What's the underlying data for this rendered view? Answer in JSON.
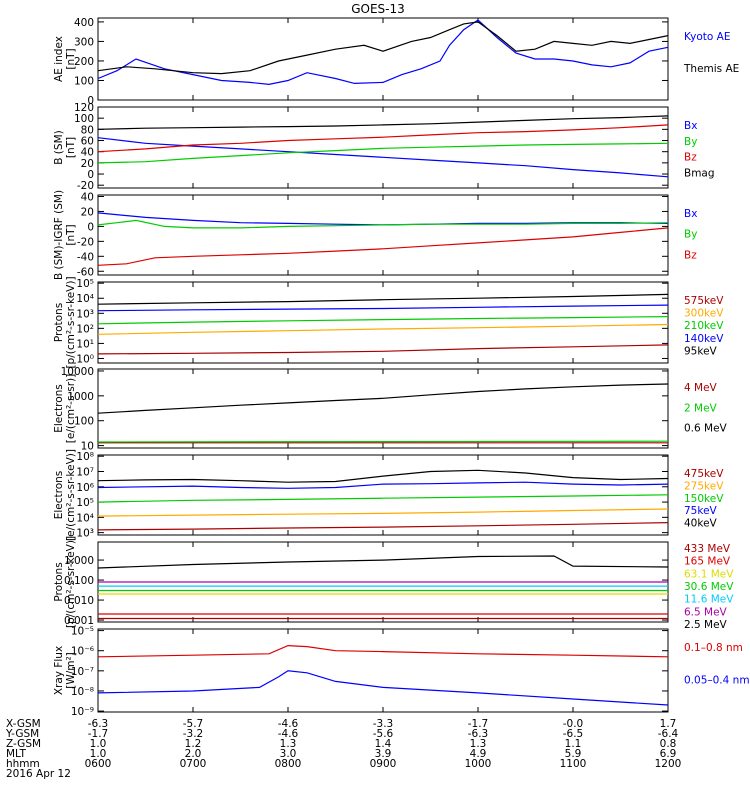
{
  "title": "GOES-13",
  "colors": {
    "black": "#000000",
    "blue": "#0000ff",
    "red": "#dd0000",
    "green": "#00cc00",
    "orange": "#ffaa00",
    "cyan": "#00ccff",
    "yellow": "#dddd00",
    "darkred": "#aa0000",
    "purple": "#aa00aa"
  },
  "chart_data": [
    {
      "type": "line",
      "ylabel": "AE index\n[nT]",
      "yscale": "linear",
      "ylim": [
        0,
        420
      ],
      "yticks": [
        "0",
        "100",
        "200",
        "300",
        "400"
      ],
      "series": [
        {
          "name": "Kyoto AE",
          "color": "blue",
          "x": [
            6.0,
            6.2,
            6.4,
            6.7,
            7.0,
            7.3,
            7.6,
            7.8,
            8.0,
            8.2,
            8.5,
            8.7,
            9.0,
            9.2,
            9.4,
            9.6,
            9.7,
            9.85,
            10.0,
            10.2,
            10.4,
            10.6,
            10.8,
            11.0,
            11.2,
            11.4,
            11.6,
            11.8,
            12.0
          ],
          "y": [
            110,
            150,
            210,
            160,
            130,
            100,
            90,
            80,
            100,
            140,
            110,
            85,
            90,
            130,
            160,
            200,
            280,
            360,
            410,
            320,
            240,
            210,
            210,
            200,
            180,
            170,
            190,
            250,
            270
          ]
        },
        {
          "name": "Themis AE",
          "color": "black",
          "x": [
            6.0,
            6.3,
            6.6,
            7.0,
            7.3,
            7.6,
            7.9,
            8.2,
            8.5,
            8.8,
            9.0,
            9.3,
            9.5,
            9.7,
            9.85,
            10.0,
            10.2,
            10.4,
            10.6,
            10.8,
            11.0,
            11.2,
            11.4,
            11.6,
            11.8,
            12.0
          ],
          "y": [
            150,
            170,
            160,
            140,
            135,
            150,
            200,
            230,
            260,
            280,
            250,
            300,
            320,
            360,
            390,
            400,
            330,
            250,
            260,
            300,
            290,
            280,
            300,
            290,
            310,
            330
          ]
        }
      ]
    },
    {
      "type": "line",
      "ylabel": "B (SM)\n[nT]",
      "yscale": "linear",
      "ylim": [
        -25,
        120
      ],
      "yticks": [
        "-20",
        "0",
        "20",
        "40",
        "60",
        "80",
        "100",
        "120"
      ],
      "series": [
        {
          "name": "Bx",
          "color": "blue",
          "x": [
            6.0,
            6.5,
            7.0,
            7.5,
            8.0,
            8.5,
            9.0,
            9.5,
            10.0,
            10.5,
            11.0,
            11.5,
            12.0
          ],
          "y": [
            65,
            55,
            50,
            45,
            40,
            35,
            30,
            25,
            20,
            15,
            8,
            2,
            -5
          ]
        },
        {
          "name": "By",
          "color": "green",
          "x": [
            6.0,
            6.5,
            7.0,
            7.5,
            8.0,
            8.5,
            9.0,
            9.5,
            10.0,
            10.5,
            11.0,
            11.5,
            12.0
          ],
          "y": [
            20,
            22,
            28,
            33,
            38,
            42,
            46,
            48,
            50,
            52,
            53,
            54,
            55
          ]
        },
        {
          "name": "Bz",
          "color": "red",
          "x": [
            6.0,
            6.5,
            7.0,
            7.5,
            8.0,
            8.5,
            9.0,
            9.5,
            10.0,
            10.5,
            11.0,
            11.5,
            12.0
          ],
          "y": [
            40,
            45,
            52,
            55,
            60,
            63,
            66,
            70,
            74,
            76,
            79,
            83,
            88
          ]
        },
        {
          "name": "Bmag",
          "color": "black",
          "x": [
            6.0,
            6.5,
            7.0,
            7.5,
            8.0,
            8.5,
            9.0,
            9.5,
            10.0,
            10.5,
            11.0,
            11.5,
            12.0
          ],
          "y": [
            80,
            82,
            83,
            84,
            85,
            86,
            88,
            90,
            93,
            96,
            99,
            101,
            104
          ]
        }
      ]
    },
    {
      "type": "line",
      "ylabel": "B (SM)-IGRF (SM)\n[nT]",
      "yscale": "linear",
      "ylim": [
        -65,
        42
      ],
      "yticks": [
        "-60",
        "-40",
        "-20",
        "0",
        "20",
        "40"
      ],
      "series": [
        {
          "name": "Bx",
          "color": "blue",
          "x": [
            6.0,
            6.5,
            7.0,
            7.5,
            8.0,
            8.5,
            9.0,
            9.5,
            10.0,
            10.5,
            11.0,
            11.5,
            12.0
          ],
          "y": [
            18,
            12,
            8,
            5,
            4,
            3,
            2,
            3,
            4,
            4,
            5,
            5,
            4
          ]
        },
        {
          "name": "By",
          "color": "green",
          "x": [
            6.0,
            6.2,
            6.4,
            6.7,
            7.0,
            7.5,
            8.0,
            8.5,
            9.0,
            9.5,
            10.0,
            10.5,
            11.0,
            11.5,
            12.0
          ],
          "y": [
            2,
            5,
            8,
            0,
            -2,
            -2,
            0,
            1,
            2,
            3,
            3,
            3,
            4,
            4,
            5
          ]
        },
        {
          "name": "Bz",
          "color": "red",
          "x": [
            6.0,
            6.3,
            6.6,
            7.0,
            7.5,
            8.0,
            8.5,
            9.0,
            9.5,
            10.0,
            10.5,
            11.0,
            11.5,
            12.0
          ],
          "y": [
            -52,
            -50,
            -42,
            -40,
            -38,
            -36,
            -33,
            -30,
            -26,
            -22,
            -18,
            -14,
            -8,
            -2
          ]
        }
      ]
    },
    {
      "type": "line",
      "ylabel": "Protons\n[p/(cm²-s-sr-keV)]",
      "yscale": "log",
      "ylim": [
        0.5,
        120000
      ],
      "yticks": [
        "10⁰",
        "10¹",
        "10²",
        "10³",
        "10⁴",
        "10⁵"
      ],
      "series": [
        {
          "name": "575keV",
          "color": "darkred",
          "x": [
            6.0,
            7.0,
            8.0,
            9.0,
            10.0,
            11.0,
            12.0
          ],
          "y": [
            2,
            2.2,
            2.5,
            3,
            4.5,
            6,
            8
          ]
        },
        {
          "name": "300keV",
          "color": "orange",
          "x": [
            6.0,
            7.0,
            8.0,
            9.0,
            10.0,
            11.0,
            12.0
          ],
          "y": [
            40,
            55,
            70,
            90,
            110,
            140,
            180
          ]
        },
        {
          "name": "210keV",
          "color": "green",
          "x": [
            6.0,
            7.0,
            8.0,
            9.0,
            10.0,
            11.0,
            12.0
          ],
          "y": [
            200,
            260,
            320,
            380,
            450,
            520,
            600
          ]
        },
        {
          "name": "140keV",
          "color": "blue",
          "x": [
            6.0,
            7.0,
            8.0,
            9.0,
            10.0,
            11.0,
            12.0
          ],
          "y": [
            1500,
            1700,
            1900,
            2100,
            2500,
            3000,
            3500
          ]
        },
        {
          "name": "95keV",
          "color": "black",
          "x": [
            6.0,
            7.0,
            8.0,
            9.0,
            10.0,
            11.0,
            12.0
          ],
          "y": [
            4000,
            5000,
            6000,
            8000,
            10000,
            13000,
            18000
          ]
        }
      ]
    },
    {
      "type": "line",
      "ylabel": "Electrons\n[e/(cm²-s-sr)]",
      "yscale": "log",
      "ylim": [
        8,
        12000
      ],
      "yticks": [
        "10",
        "100",
        "1000",
        "10000"
      ],
      "series": [
        {
          "name": "4 MeV",
          "color": "darkred",
          "x": [
            6.0,
            12.0
          ],
          "y": [
            13,
            13
          ]
        },
        {
          "name": "2 MeV",
          "color": "green",
          "x": [
            6.0,
            12.0
          ],
          "y": [
            14,
            15
          ]
        },
        {
          "name": "0.6 MeV",
          "color": "black",
          "x": [
            6.0,
            6.5,
            7.0,
            7.5,
            8.0,
            8.5,
            9.0,
            9.5,
            10.0,
            10.5,
            11.0,
            11.5,
            12.0
          ],
          "y": [
            200,
            260,
            330,
            420,
            520,
            650,
            800,
            1100,
            1500,
            1900,
            2300,
            2700,
            3000
          ]
        }
      ]
    },
    {
      "type": "line",
      "ylabel": "Electrons\n[e/(cm²-s-sr-keV)]",
      "yscale": "log",
      "ylim": [
        700,
        120000000
      ],
      "yticks": [
        "10³",
        "10⁴",
        "10⁵",
        "10⁶",
        "10⁷",
        "10⁸"
      ],
      "series": [
        {
          "name": "475keV",
          "color": "darkred",
          "x": [
            6.0,
            7.0,
            8.0,
            9.0,
            10.0,
            11.0,
            12.0
          ],
          "y": [
            1500,
            1700,
            2000,
            2300,
            2800,
            3500,
            4500
          ]
        },
        {
          "name": "275keV",
          "color": "orange",
          "x": [
            6.0,
            7.0,
            8.0,
            9.0,
            10.0,
            11.0,
            12.0
          ],
          "y": [
            12000,
            14000,
            16000,
            18000,
            22000,
            28000,
            35000
          ]
        },
        {
          "name": "150keV",
          "color": "green",
          "x": [
            6.0,
            7.0,
            8.0,
            9.0,
            10.0,
            11.0,
            12.0
          ],
          "y": [
            100000,
            130000,
            150000,
            180000,
            210000,
            250000,
            300000
          ]
        },
        {
          "name": "75keV",
          "color": "blue",
          "x": [
            6.0,
            6.5,
            7.0,
            7.5,
            8.0,
            8.5,
            9.0,
            9.5,
            10.0,
            10.5,
            11.0,
            11.5,
            12.0
          ],
          "y": [
            900000,
            1000000,
            1100000,
            900000,
            800000,
            900000,
            1500000,
            1600000,
            1800000,
            2000000,
            1500000,
            1300000,
            1500000
          ]
        },
        {
          "name": "40keV",
          "color": "black",
          "x": [
            6.0,
            6.5,
            7.0,
            7.5,
            8.0,
            8.5,
            9.0,
            9.5,
            10.0,
            10.5,
            11.0,
            11.5,
            12.0
          ],
          "y": [
            2500000,
            2800000,
            3000000,
            2500000,
            2000000,
            2200000,
            5000000,
            10000000,
            12000000,
            8000000,
            4000000,
            3000000,
            3500000
          ]
        }
      ]
    },
    {
      "type": "line",
      "ylabel": "Protons\n[p/(cm²-s-sr-keV)]",
      "yscale": "log",
      "ylim": [
        0.0008,
        8
      ],
      "yticks": [
        "0.001",
        "0.010",
        "0.100",
        "1.000"
      ],
      "series": [
        {
          "name": "433 MeV",
          "color": "darkred",
          "x": [
            6.0,
            12.0
          ],
          "y": [
            0.0012,
            0.0012
          ]
        },
        {
          "name": "165 MeV",
          "color": "red",
          "x": [
            6.0,
            12.0
          ],
          "y": [
            0.002,
            0.002
          ]
        },
        {
          "name": "63.1 MeV",
          "color": "yellow",
          "x": [
            6.0,
            12.0
          ],
          "y": [
            0.02,
            0.02
          ]
        },
        {
          "name": "30.6 MeV",
          "color": "green",
          "x": [
            6.0,
            12.0
          ],
          "y": [
            0.03,
            0.03
          ]
        },
        {
          "name": "11.6 MeV",
          "color": "cyan",
          "x": [
            6.0,
            12.0
          ],
          "y": [
            0.05,
            0.05
          ]
        },
        {
          "name": "6.5 MeV",
          "color": "purple",
          "x": [
            6.0,
            12.0
          ],
          "y": [
            0.08,
            0.08
          ]
        },
        {
          "name": "2.5 MeV",
          "color": "black",
          "x": [
            6.0,
            7.0,
            8.0,
            9.0,
            10.0,
            10.8,
            11.0,
            12.0
          ],
          "y": [
            0.4,
            0.6,
            0.8,
            1.0,
            1.5,
            1.6,
            0.5,
            0.45
          ]
        }
      ]
    },
    {
      "type": "line",
      "ylabel": "Xray Flux\n[W/m²]",
      "yscale": "log",
      "ylim": [
        9e-10,
        1.2e-05
      ],
      "yticks": [
        "10⁻⁹",
        "10⁻⁸",
        "10⁻⁷",
        "10⁻⁶",
        "10⁻⁵"
      ],
      "series": [
        {
          "name": "0.1–0.8 nm",
          "color": "red",
          "x": [
            6.0,
            7.0,
            7.8,
            8.0,
            8.2,
            8.5,
            9.0,
            10.0,
            11.0,
            12.0
          ],
          "y": [
            5e-07,
            6e-07,
            7e-07,
            1.8e-06,
            1.6e-06,
            1e-06,
            9e-07,
            7e-07,
            6e-07,
            5e-07
          ]
        },
        {
          "name": "0.05–0.4 nm",
          "color": "blue",
          "x": [
            6.0,
            7.0,
            7.7,
            7.9,
            8.0,
            8.2,
            8.5,
            9.0,
            10.0,
            11.0,
            12.0
          ],
          "y": [
            8e-09,
            1e-08,
            1.5e-08,
            5e-08,
            1e-07,
            8e-08,
            3e-08,
            1.5e-08,
            8e-09,
            4e-09,
            2e-09
          ]
        }
      ]
    }
  ],
  "xaxis": {
    "rows": [
      {
        "label": "X-GSM",
        "values": [
          "-6.3",
          "-5.7",
          "-4.6",
          "-3.3",
          "-1.7",
          "-0.0",
          "1.7"
        ]
      },
      {
        "label": "Y-GSM",
        "values": [
          "-1.7",
          "-3.2",
          "-4.6",
          "-5.6",
          "-6.3",
          "-6.5",
          "-6.4"
        ]
      },
      {
        "label": "Z-GSM",
        "values": [
          "1.0",
          "1.2",
          "1.3",
          "1.4",
          "1.3",
          "1.1",
          "0.8"
        ]
      },
      {
        "label": "MLT",
        "values": [
          "1.0",
          "2.0",
          "3.0",
          "3.9",
          "4.9",
          "5.9",
          "6.9"
        ]
      },
      {
        "label": "hhmm",
        "values": [
          "0600",
          "0700",
          "0800",
          "0900",
          "1000",
          "1100",
          "1200"
        ]
      }
    ],
    "date": "2016 Apr 12"
  }
}
